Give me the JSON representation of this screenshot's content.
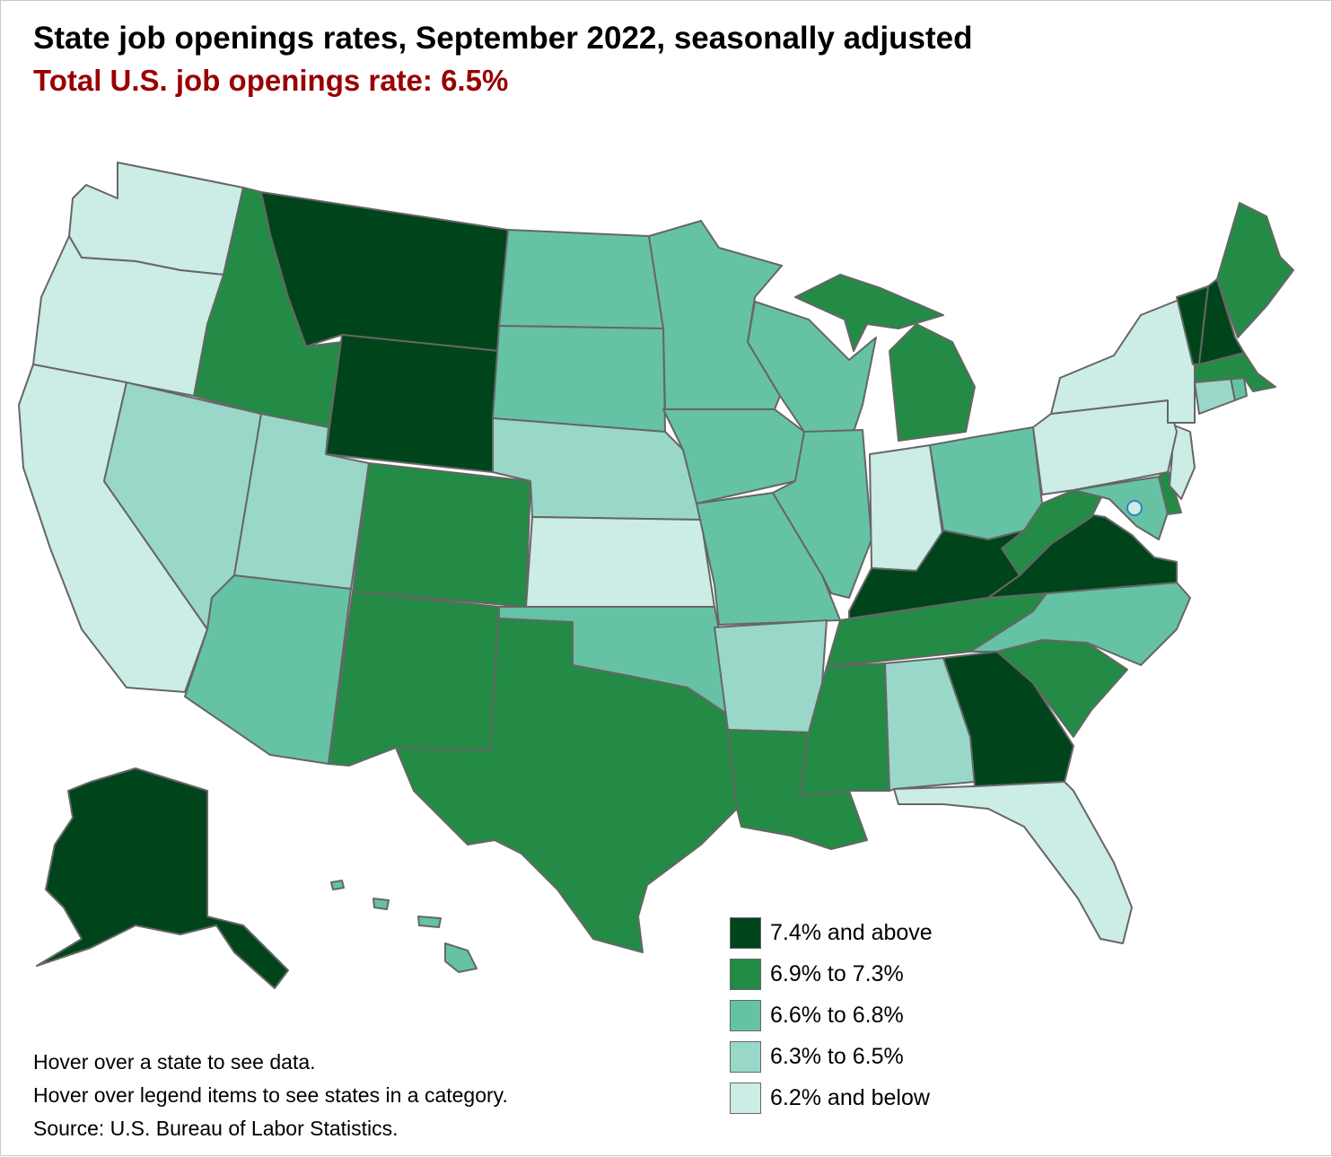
{
  "title": "State job openings rates, September 2022, seasonally adjusted",
  "subtitle": "Total U.S. job openings rate: 6.5%",
  "colors": {
    "c1": "#00441b",
    "c2": "#238b45",
    "c3": "#66c2a5",
    "c4": "#99d8c9",
    "c5": "#ccece6",
    "border": "#666666",
    "subtitle": "#990000"
  },
  "legend": [
    {
      "label": "7.4% and above",
      "color": "#00441b"
    },
    {
      "label": "6.9% to 7.3%",
      "color": "#238b45"
    },
    {
      "label": "6.6% to 6.8%",
      "color": "#66c2a5"
    },
    {
      "label": "6.3% to 6.5%",
      "color": "#99d8c9"
    },
    {
      "label": "6.2% and below",
      "color": "#ccece6"
    }
  ],
  "notes": {
    "hover_state": "Hover over a state to see data.",
    "hover_legend": "Hover over legend items to see states in a category.",
    "source": "Source: U.S. Bureau of Labor Statistics."
  },
  "state_categories": {
    "WA": "6.2% and below",
    "OR": "6.2% and below",
    "CA": "6.2% and below",
    "NV": "6.3% to 6.5%",
    "ID": "6.9% to 7.3%",
    "MT": "7.4% and above",
    "WY": "7.4% and above",
    "UT": "6.3% to 6.5%",
    "AZ": "6.6% to 6.8%",
    "CO": "6.9% to 7.3%",
    "NM": "6.9% to 7.3%",
    "TX": "6.9% to 7.3%",
    "ND": "6.6% to 6.8%",
    "SD": "6.6% to 6.8%",
    "NE": "6.3% to 6.5%",
    "KS": "6.2% and below",
    "OK": "6.6% to 6.8%",
    "MN": "6.6% to 6.8%",
    "IA": "6.6% to 6.8%",
    "MO": "6.6% to 6.8%",
    "AR": "6.3% to 6.5%",
    "LA": "6.9% to 7.3%",
    "WI": "6.6% to 6.8%",
    "IL": "6.6% to 6.8%",
    "MI": "6.9% to 7.3%",
    "IN": "6.2% and below",
    "OH": "6.6% to 6.8%",
    "KY": "7.4% and above",
    "TN": "6.9% to 7.3%",
    "MS": "6.9% to 7.3%",
    "AL": "6.3% to 6.5%",
    "GA": "7.4% and above",
    "FL": "6.2% and below",
    "SC": "6.9% to 7.3%",
    "NC": "6.6% to 6.8%",
    "VA": "7.4% and above",
    "WV": "6.9% to 7.3%",
    "MD": "6.6% to 6.8%",
    "DE": "6.9% to 7.3%",
    "NJ": "6.2% and below",
    "PA": "6.2% and below",
    "NY": "6.2% and below",
    "CT": "6.3% to 6.5%",
    "RI": "6.6% to 6.8%",
    "MA": "6.9% to 7.3%",
    "VT": "7.4% and above",
    "NH": "7.4% and above",
    "ME": "6.9% to 7.3%",
    "DC": "6.2% and below",
    "AK": "7.4% and above",
    "HI": "6.6% to 6.8%"
  }
}
